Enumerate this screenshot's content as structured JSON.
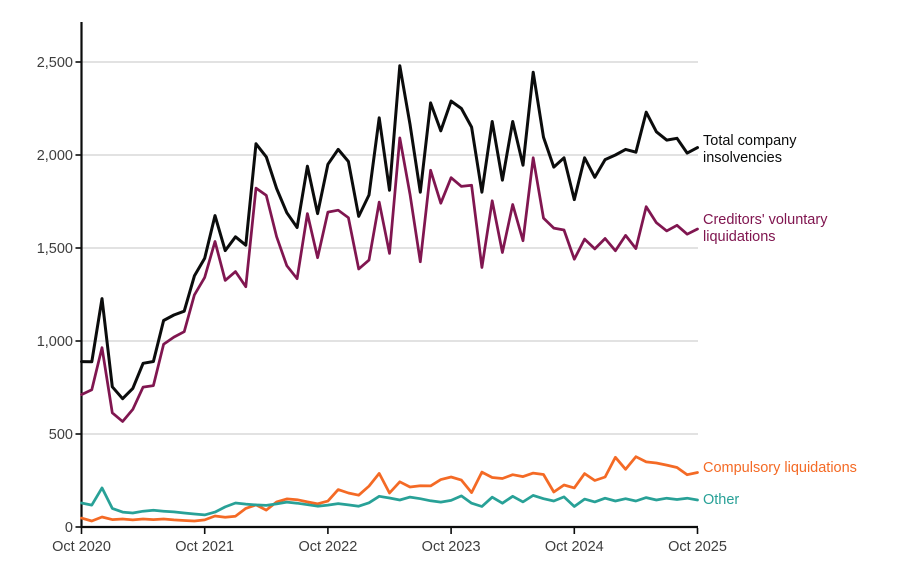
{
  "chart_data": {
    "type": "line",
    "title": "",
    "background_color": "#ffffff",
    "gridline_color": "#d9d9d9",
    "axis_color": "#0b0c0c",
    "tick_label_color": "#3d3d3d",
    "legend_position": "end-of-line-labels",
    "grid": "horizontal-only",
    "x_axis": {
      "frequency": "monthly",
      "start": "Oct 2020",
      "end": "Oct 2025",
      "ticks": [
        {
          "label": "Oct 2020",
          "month": 0
        },
        {
          "label": "Oct 2021",
          "month": 12
        },
        {
          "label": "Oct 2022",
          "month": 24
        },
        {
          "label": "Oct 2023",
          "month": 36
        },
        {
          "label": "Oct 2024",
          "month": 48
        },
        {
          "label": "Oct 2025",
          "month": 60
        }
      ]
    },
    "y_axis": {
      "ticks": [
        0,
        500,
        1000,
        1500,
        2000,
        2500
      ],
      "tick_labels": [
        "0",
        "500",
        "1,000",
        "1,500",
        "2,000",
        "2,500"
      ],
      "ylim": [
        0,
        2700
      ]
    },
    "series": [
      {
        "id": "total",
        "name": "Total company insolvencies",
        "color": "#0b0c0c",
        "values": [
          889,
          888,
          1228,
          754,
          690,
          745,
          880,
          890,
          1110,
          1140,
          1160,
          1350,
          1445,
          1674,
          1486,
          1560,
          1515,
          2060,
          1990,
          1820,
          1690,
          1610,
          1940,
          1685,
          1950,
          2030,
          1965,
          1670,
          1785,
          2200,
          1810,
          2480,
          2165,
          1800,
          2280,
          2130,
          2290,
          2250,
          2150,
          1800,
          2180,
          1865,
          2180,
          1945,
          2445,
          2095,
          1935,
          1985,
          1760,
          1985,
          1880,
          1975,
          2000,
          2030,
          2015,
          2230,
          2125,
          2080,
          2090,
          2010,
          2040
        ]
      },
      {
        "id": "cvl",
        "name": "Creditors' voluntary liquidations",
        "color": "#801650",
        "values": [
          712,
          738,
          964,
          614,
          567,
          632,
          752,
          760,
          982,
          1021,
          1050,
          1248,
          1342,
          1535,
          1326,
          1373,
          1292,
          1822,
          1783,
          1561,
          1405,
          1335,
          1685,
          1448,
          1693,
          1703,
          1663,
          1387,
          1435,
          1747,
          1471,
          2092,
          1789,
          1426,
          1918,
          1741,
          1878,
          1831,
          1837,
          1395,
          1754,
          1476,
          1734,
          1539,
          1985,
          1661,
          1607,
          1597,
          1440,
          1548,
          1495,
          1551,
          1485,
          1568,
          1497,
          1722,
          1636,
          1592,
          1622,
          1574,
          1602
        ]
      },
      {
        "id": "compulsory",
        "name": "Compulsory liquidations",
        "color": "#f46a25",
        "values": [
          48,
          32,
          54,
          40,
          43,
          38,
          43,
          40,
          43,
          38,
          35,
          32,
          38,
          59,
          52,
          58,
          100,
          119,
          91,
          135,
          151,
          147,
          135,
          125,
          139,
          201,
          183,
          171,
          220,
          288,
          183,
          243,
          215,
          222,
          221,
          255,
          269,
          252,
          185,
          295,
          266,
          261,
          281,
          271,
          290,
          282,
          188,
          226,
          210,
          287,
          250,
          269,
          375,
          310,
          378,
          350,
          344,
          333,
          320,
          281,
          293
        ]
      },
      {
        "id": "other",
        "name": "Other",
        "color": "#28a197",
        "values": [
          129,
          118,
          210,
          100,
          80,
          75,
          85,
          90,
          85,
          81,
          75,
          70,
          65,
          80,
          108,
          129,
          123,
          119,
          116,
          124,
          134,
          128,
          120,
          112,
          118,
          126,
          119,
          112,
          130,
          165,
          156,
          145,
          161,
          152,
          141,
          134,
          143,
          167,
          128,
          110,
          160,
          128,
          165,
          135,
          170,
          152,
          140,
          162,
          110,
          150,
          135,
          155,
          140,
          152,
          140,
          158,
          145,
          155,
          148,
          155,
          145
        ]
      }
    ]
  }
}
